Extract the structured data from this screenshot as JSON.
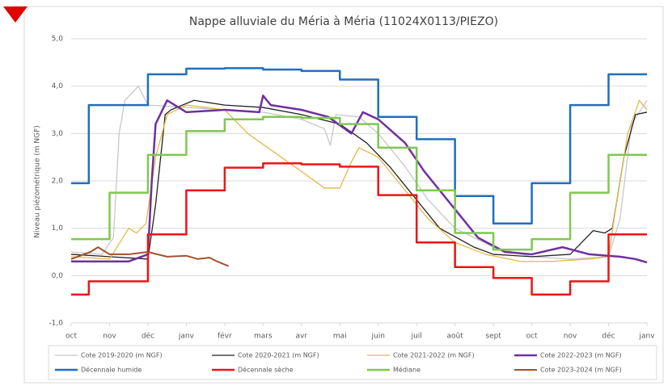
{
  "chart_data": {
    "type": "line",
    "title": "Nappe alluviale du Méria à Méria (11024X0113/PIEZO)",
    "y_label": "Niveau piézométrique (m NGF)",
    "xlim": [
      0,
      15
    ],
    "xticks": [
      {
        "value": 0,
        "label": "oct"
      },
      {
        "value": 1,
        "label": "nov"
      },
      {
        "value": 2,
        "label": "déc"
      },
      {
        "value": 3,
        "label": "janv"
      },
      {
        "value": 4,
        "label": "févr"
      },
      {
        "value": 5,
        "label": "mars"
      },
      {
        "value": 6,
        "label": "avr"
      },
      {
        "value": 7,
        "label": "mai"
      },
      {
        "value": 8,
        "label": "juin"
      },
      {
        "value": 9,
        "label": "juil"
      },
      {
        "value": 10,
        "label": "août"
      },
      {
        "value": 11,
        "label": "sept"
      },
      {
        "value": 12,
        "label": "oct"
      },
      {
        "value": 13,
        "label": "nov"
      },
      {
        "value": 14,
        "label": "déc"
      },
      {
        "value": 15,
        "label": "janv"
      }
    ],
    "ylim": [
      -1,
      5
    ],
    "yticks": [
      {
        "value": -1,
        "label": "-1,0"
      },
      {
        "value": 0,
        "label": "0,0"
      },
      {
        "value": 1,
        "label": "1,0"
      },
      {
        "value": 2,
        "label": "2,0"
      },
      {
        "value": 3,
        "label": "3,0"
      },
      {
        "value": 4,
        "label": "4,0"
      },
      {
        "value": 5,
        "label": "5,0"
      }
    ],
    "grid": true,
    "legend": "bottom",
    "series": [
      {
        "name": "Cote 2019-2020 (m NGF)",
        "color": "#c8c8c8",
        "line_width": 1.3,
        "x": [
          0,
          0.8,
          1.1,
          1.25,
          1.4,
          1.75,
          2,
          3,
          4,
          5,
          6,
          6.6,
          6.75,
          6.9,
          7.5,
          8,
          8.7,
          9.3,
          10,
          11,
          12,
          13,
          14,
          14.3,
          14.6,
          15
        ],
        "values": [
          0.5,
          0.45,
          0.8,
          3.0,
          3.7,
          4.0,
          3.6,
          3.55,
          3.5,
          3.45,
          3.3,
          3.1,
          2.75,
          3.4,
          3.35,
          3.0,
          2.3,
          1.6,
          1.0,
          0.6,
          0.4,
          0.35,
          0.4,
          1.2,
          3.2,
          3.7
        ]
      },
      {
        "name": "Cote 2020-2021 (m NGF)",
        "color": "#222222",
        "line_width": 1.3,
        "x": [
          0,
          1,
          2,
          2.2,
          2.45,
          2.6,
          3.2,
          4,
          5,
          6,
          7,
          7.7,
          8.3,
          9,
          9.6,
          10.5,
          11,
          12,
          13,
          13.6,
          13.9,
          14.1,
          14.4,
          14.7,
          15
        ],
        "values": [
          0.45,
          0.4,
          0.35,
          1.5,
          3.4,
          3.5,
          3.7,
          3.6,
          3.55,
          3.4,
          3.2,
          2.8,
          2.3,
          1.6,
          1.0,
          0.6,
          0.45,
          0.4,
          0.45,
          0.95,
          0.9,
          1.0,
          2.5,
          3.4,
          3.45
        ]
      },
      {
        "name": "Cote 2021-2022 (m NGF)",
        "color": "#e6b84a",
        "line_width": 1.3,
        "x": [
          0,
          1,
          1.5,
          1.7,
          1.95,
          2.2,
          2.5,
          3,
          4,
          4.6,
          5.3,
          6,
          6.6,
          7,
          7.3,
          7.5,
          8,
          8.6,
          9.3,
          10,
          10.8,
          11.7,
          12.5,
          13.5,
          14,
          14.2,
          14.5,
          14.8,
          15
        ],
        "values": [
          0.4,
          0.35,
          1.0,
          0.9,
          1.1,
          2.5,
          3.4,
          3.6,
          3.5,
          3.0,
          2.6,
          2.2,
          1.85,
          1.85,
          2.4,
          2.7,
          2.5,
          1.9,
          1.2,
          0.7,
          0.45,
          0.3,
          0.3,
          0.35,
          0.4,
          1.5,
          3.0,
          3.7,
          3.5
        ]
      },
      {
        "name": "Cote 2022-2023 (m NGF)",
        "color": "#7030a0",
        "line_width": 2.5,
        "x": [
          0,
          1,
          1.5,
          2,
          2.1,
          2.2,
          2.5,
          3,
          4,
          4.9,
          5.0,
          5.2,
          6,
          6.7,
          7.3,
          7.6,
          8,
          8.7,
          9.2,
          10,
          10.6,
          11.3,
          12,
          12.8,
          13.5,
          14.3,
          14.7,
          15
        ],
        "values": [
          0.3,
          0.3,
          0.3,
          0.45,
          2.0,
          3.2,
          3.7,
          3.45,
          3.5,
          3.45,
          3.8,
          3.6,
          3.5,
          3.35,
          3.0,
          3.45,
          3.3,
          2.8,
          2.2,
          1.4,
          0.8,
          0.5,
          0.45,
          0.6,
          0.45,
          0.4,
          0.35,
          0.28
        ]
      },
      {
        "name": "Décennale humide",
        "color": "#1f6fc0",
        "line_width": 2.5,
        "step": true,
        "x": [
          0,
          0.46,
          2,
          3,
          4,
          5,
          6,
          7,
          8,
          9,
          10,
          11,
          12,
          13,
          14,
          15
        ],
        "values": [
          1.95,
          3.6,
          4.25,
          4.37,
          4.38,
          4.35,
          4.32,
          4.14,
          3.35,
          2.88,
          1.68,
          1.1,
          1.95,
          3.6,
          4.25,
          4.25
        ]
      },
      {
        "name": "Décennale sèche",
        "color": "#f01414",
        "line_width": 2.5,
        "step": true,
        "x": [
          0,
          0.46,
          2,
          3,
          4,
          5,
          6,
          7,
          8,
          9,
          10,
          11,
          12,
          13,
          14,
          15
        ],
        "values": [
          -0.4,
          -0.12,
          0.87,
          1.8,
          2.28,
          2.37,
          2.35,
          2.3,
          1.7,
          0.7,
          0.18,
          -0.05,
          -0.4,
          -0.12,
          0.87,
          0.87
        ]
      },
      {
        "name": "Médiane",
        "color": "#7ec850",
        "line_width": 2.5,
        "step": true,
        "x": [
          0,
          1,
          2,
          3,
          4,
          5,
          6,
          7,
          8,
          9,
          10,
          11,
          12,
          13,
          14,
          15
        ],
        "values": [
          0.77,
          1.75,
          2.55,
          3.05,
          3.3,
          3.35,
          3.33,
          3.2,
          2.7,
          1.8,
          0.9,
          0.55,
          0.77,
          1.75,
          2.55,
          2.55
        ]
      },
      {
        "name": "Cote 2023-2024 (m NGF)",
        "color": "#a0522d",
        "line_width": 2,
        "x": [
          0,
          0.5,
          0.7,
          1,
          1.5,
          2,
          2.5,
          3,
          3.3,
          3.6,
          3.8,
          4.1
        ],
        "values": [
          0.35,
          0.5,
          0.6,
          0.45,
          0.45,
          0.5,
          0.4,
          0.42,
          0.35,
          0.38,
          0.3,
          0.2
        ]
      }
    ]
  }
}
